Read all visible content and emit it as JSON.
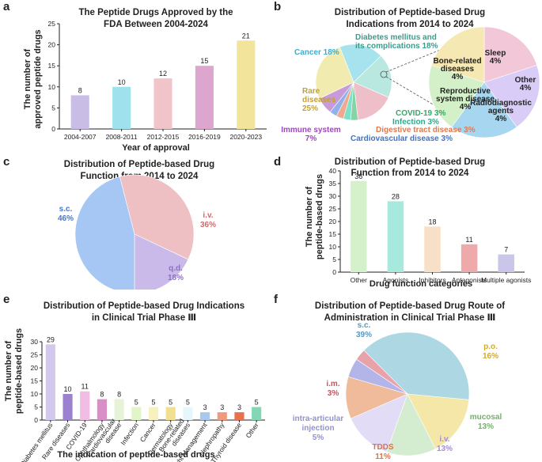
{
  "panel_labels": [
    "a",
    "b",
    "c",
    "d",
    "e",
    "f"
  ],
  "chart_data": [
    {
      "id": "a",
      "type": "bar",
      "title_lines": [
        "The Peptide Drugs Approved by the",
        "FDA Between 2004-2024"
      ],
      "xlabel": "Year of approval",
      "ylabel_lines": [
        "The number of",
        "approved peptide drugs"
      ],
      "ylim": [
        0,
        25
      ],
      "yticks": [
        0,
        5,
        10,
        15,
        20,
        25
      ],
      "categories": [
        "2004-2007",
        "2008-2011",
        "2012-2015",
        "2016-2019",
        "2020-2023"
      ],
      "values": [
        8,
        10,
        12,
        15,
        21
      ],
      "colors": [
        "#c9bde6",
        "#9fe2ee",
        "#f0c4c8",
        "#dca6cf",
        "#f2e49a"
      ]
    },
    {
      "id": "b",
      "type": "pie",
      "title_lines": [
        "Distribution of Peptide-based Drug",
        "Indications from 2014 to 2024"
      ],
      "slices": [
        {
          "label": "Cancer 18%",
          "value": 18,
          "color": "#a7e3ee",
          "text_color": "#3aaed0"
        },
        {
          "label_lines": [
            "Diabetes mellitus and",
            "its complications 18%"
          ],
          "value": 18,
          "color": "#b8e8df",
          "text_color": "#3c9c8c"
        },
        {
          "label": "",
          "value": 16,
          "color": "#eebfc8",
          "text_color": "#c9607c"
        },
        {
          "label": "COVID-19 3%",
          "value": 3,
          "color": "#86d4a5",
          "text_color": "#35a866"
        },
        {
          "label": "Infection 3%",
          "value": 3,
          "color": "#7fe0c8",
          "text_color": "#2fa98b"
        },
        {
          "label": "Digestive tract disease 3%",
          "value": 3,
          "color": "#f0a890",
          "text_color": "#dd7a52"
        },
        {
          "label": "Cardiovascular disease 3%",
          "value": 3,
          "color": "#8fb2ea",
          "text_color": "#3f73c6"
        },
        {
          "label_lines": [
            "Immune system",
            "7%"
          ],
          "value": 7,
          "color": "#c99ad8",
          "text_color": "#9b48b9"
        },
        {
          "label_lines": [
            "Rare",
            "diseases",
            "25%"
          ],
          "value": 25,
          "color": "#f1ebb0",
          "text_color": "#c2a136"
        }
      ],
      "subpie": [
        {
          "label_lines": [
            "Sleep",
            "4%"
          ],
          "value": 4,
          "color": "#f2c8d8"
        },
        {
          "label_lines": [
            "Other",
            "4%"
          ],
          "value": 4,
          "color": "#d9cdf7"
        },
        {
          "label_lines": [
            "Radiodiagnostic",
            "agents",
            "4%"
          ],
          "value": 4,
          "color": "#a7d6f0"
        },
        {
          "label_lines": [
            "Reproductive",
            "system disease",
            "4%"
          ],
          "value": 4,
          "color": "#d3f0c9"
        },
        {
          "label_lines": [
            "Bone-related",
            "diseases",
            "4%"
          ],
          "value": 4,
          "color": "#f5e8b2"
        }
      ]
    },
    {
      "id": "c",
      "type": "pie",
      "title_lines": [
        "Distribution of Peptide-based Drug",
        "Function from 2014 to 2024"
      ],
      "slices": [
        {
          "label": "i.v.",
          "pct": "36%",
          "value": 36,
          "color": "#eec0c3",
          "text_color": "#d2676c"
        },
        {
          "label": "q.d.",
          "pct": "18%",
          "value": 18,
          "color": "#c9bae9",
          "text_color": "#8e6fc7"
        },
        {
          "label": "s.c.",
          "pct": "46%",
          "value": 46,
          "color": "#a6c7f3",
          "text_color": "#4a77c2"
        }
      ]
    },
    {
      "id": "d",
      "type": "bar",
      "title_lines": [
        "Distribution of Peptide-based Drug",
        "Function from 2014 to 2024"
      ],
      "xlabel": "Drug function categories",
      "ylabel_lines": [
        "The number of",
        "peptide-based drugs"
      ],
      "ylim": [
        0,
        40
      ],
      "yticks": [
        0,
        5,
        10,
        15,
        20,
        25,
        30,
        35,
        40
      ],
      "categories": [
        "Other",
        "Agonists",
        "Inhibitors",
        "Antagonists",
        "Multiple agonists"
      ],
      "values": [
        36,
        28,
        18,
        11,
        7
      ],
      "colors": [
        "#d5f1cb",
        "#a8e9de",
        "#f8dfc8",
        "#eeaaaa",
        "#c9c6ea"
      ]
    },
    {
      "id": "e",
      "type": "bar",
      "title_lines": [
        "Distribution of Peptide-based Drug Indications",
        "in Clinical Trial Phase Ⅲ"
      ],
      "xlabel": "The indication of peptide-based drugs",
      "ylabel_lines": [
        "The number of",
        "peptide-based drugs"
      ],
      "ylim": [
        0,
        30
      ],
      "yticks": [
        0,
        5,
        10,
        15,
        20,
        25,
        30
      ],
      "categories": [
        "Diabetes mellitus",
        "Rare diseases",
        "COVID-19",
        "Ophthalmology",
        "Cardiovascular disease",
        "Infection",
        "Cancer",
        "Dermatology",
        "Bone-related diseases",
        "Weight Management",
        "Nephropathy",
        "Thyroid disease",
        "Other"
      ],
      "tick_lines": [
        [
          "Diabetes mellitus"
        ],
        [
          "Rare diseases"
        ],
        [
          "COVID-19"
        ],
        [
          "Ophthalmology"
        ],
        [
          "Cardiovascular",
          "disease"
        ],
        [
          "Infection"
        ],
        [
          "Cancer"
        ],
        [
          "Dermatology"
        ],
        [
          "Bone-related",
          "diseases"
        ],
        [
          "Weight Management"
        ],
        [
          "Nephropathy"
        ],
        [
          "Thyroid disease"
        ],
        [
          "Other"
        ]
      ],
      "values": [
        29,
        10,
        11,
        8,
        8,
        5,
        5,
        5,
        5,
        3,
        3,
        3,
        5
      ],
      "colors": [
        "#d3c9ec",
        "#9b82cf",
        "#f1bde4",
        "#d88fc8",
        "#e6f3d6",
        "#e2f5c8",
        "#f7f0bf",
        "#f1e08f",
        "#e6f7fb",
        "#a9c8ee",
        "#ee9b7d",
        "#e8704d",
        "#82d8b5"
      ]
    },
    {
      "id": "f",
      "type": "pie",
      "title_lines": [
        "Distribution of Peptide-based Drug Route of",
        "Administration in Clinical Trial Phase Ⅲ"
      ],
      "slices": [
        {
          "label": "s.c.",
          "pct": "39%",
          "value": 39,
          "color": "#acd7e3",
          "text_color": "#4f9bc1"
        },
        {
          "label": "p.o.",
          "pct": "16%",
          "value": 16,
          "color": "#f4e7a7",
          "text_color": "#d2a92c"
        },
        {
          "label": "mucosal",
          "pct": "13%",
          "value": 13,
          "color": "#d4ecd0",
          "text_color": "#6fb464"
        },
        {
          "label": "i.v.",
          "pct": "13%",
          "value": 13,
          "color": "#e3dcf7",
          "text_color": "#a38ad8"
        },
        {
          "label": "TDDS",
          "pct": "11%",
          "value": 11,
          "color": "#efbb9a",
          "text_color": "#d8754a"
        },
        {
          "label_lines": [
            "intra-articular",
            "injection"
          ],
          "pct": "5%",
          "value": 5,
          "color": "#b3b5e8",
          "text_color": "#8f92d4"
        },
        {
          "label": "i.m.",
          "pct": "3%",
          "value": 3,
          "color": "#e8a3aa",
          "text_color": "#c9545f"
        }
      ]
    }
  ]
}
